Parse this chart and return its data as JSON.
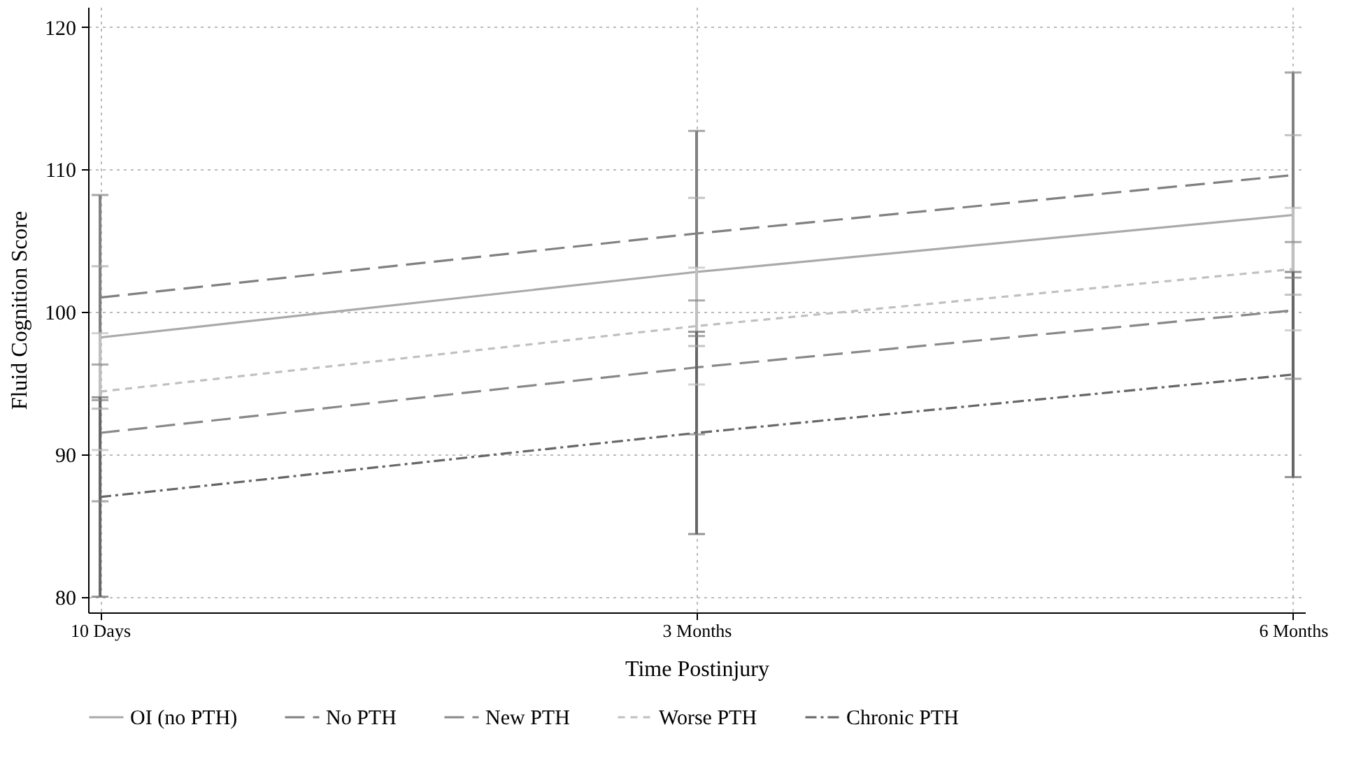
{
  "chart_data": {
    "type": "line",
    "xlabel": "Time Postinjury",
    "ylabel": "Fluid Cognition Score",
    "categories": [
      "10 Days",
      "3 Months",
      "6 Months"
    ],
    "series": [
      {
        "name": "OI (no PTH)",
        "color": "#aaaaaa",
        "line_style": "solid",
        "values": [
          98.2,
          102.8,
          106.8
        ],
        "errors": [
          5.0,
          5.2,
          5.6
        ]
      },
      {
        "name": "No PTH",
        "color": "#808080",
        "line_style": "dashed",
        "values": [
          101.0,
          105.5,
          109.6
        ],
        "errors": [
          7.2,
          7.2,
          7.2
        ]
      },
      {
        "name": "New PTH",
        "color": "#888888",
        "line_style": "dashed",
        "values": [
          91.5,
          96.1,
          100.1
        ],
        "errors": [
          4.8,
          4.7,
          4.8
        ]
      },
      {
        "name": "Worse PTH",
        "color": "#c0c0c0",
        "line_style": "dotted",
        "values": [
          94.4,
          99.0,
          103.0
        ],
        "errors": [
          4.1,
          4.1,
          4.3
        ]
      },
      {
        "name": "Chronic PTH",
        "color": "#666666",
        "line_style": "dashdot",
        "values": [
          87.0,
          91.5,
          95.6
        ],
        "errors": [
          7.0,
          7.1,
          7.2
        ]
      }
    ],
    "ylim": [
      78.9,
      121.4
    ],
    "yticks": [
      80,
      90,
      100,
      110,
      120
    ],
    "grid": true,
    "legend": "bottom",
    "marker": "none"
  }
}
